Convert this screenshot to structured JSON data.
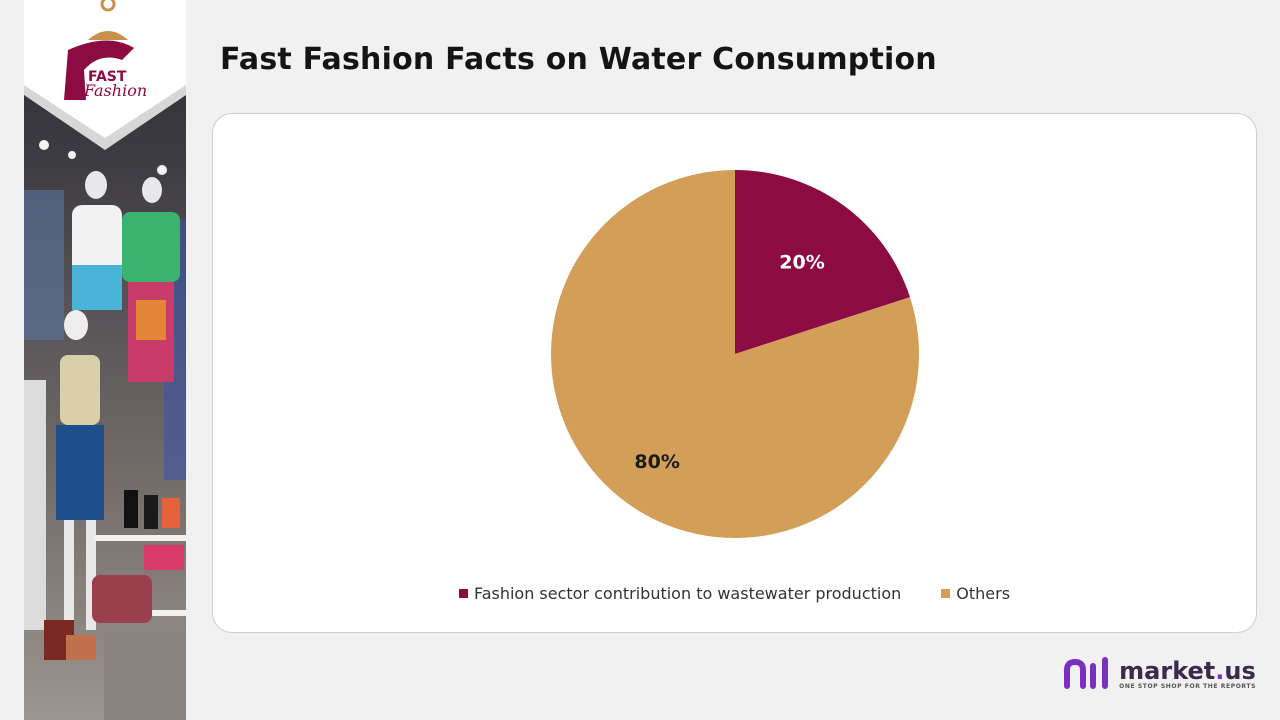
{
  "page": {
    "title": "Fast Fashion Facts on Water Consumption"
  },
  "logo": {
    "line1": "FAST",
    "line2": "Fashion",
    "icon": "hanger-icon"
  },
  "chart_data": {
    "type": "pie",
    "title": "",
    "categories": [
      "Fashion sector contribution to wastewater production",
      "Others"
    ],
    "values": [
      20,
      80
    ],
    "labels": [
      "20%",
      "80%"
    ],
    "colors": [
      "#8c0b42",
      "#d39e57"
    ],
    "legend": "bottom"
  },
  "brand": {
    "name": "market",
    "dot": ".",
    "suffix": "us",
    "tagline": "ONE STOP SHOP FOR THE REPORTS",
    "icon": "market-us-logo-icon"
  }
}
